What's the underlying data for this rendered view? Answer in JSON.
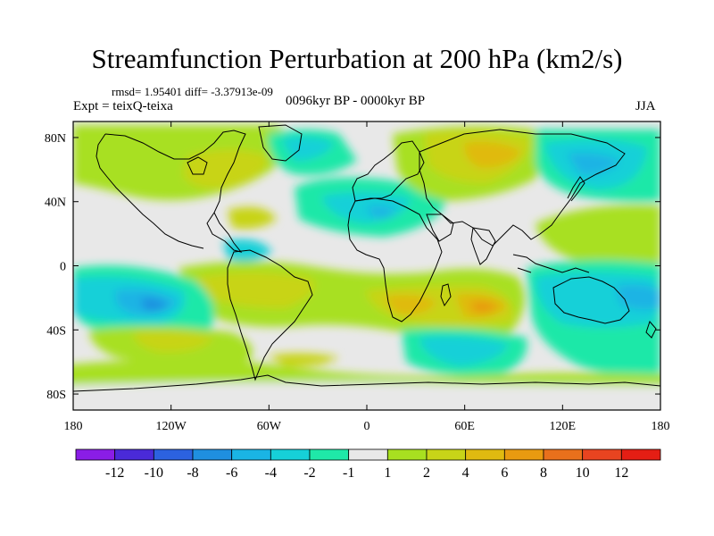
{
  "chart_data": {
    "type": "contour-map",
    "title": "Streamfunction Perturbation at 200 hPa (km2/s)",
    "subtitle_left_small": "rmsd= 1.95401 diff= -3.37913e-09",
    "subtitle_left": "Expt = teixQ-teixa",
    "subtitle_center": "0096kyr BP - 0000kyr BP",
    "subtitle_right": "JJA",
    "x_ticks": [
      "180",
      "120W",
      "60W",
      "0",
      "60E",
      "120E",
      "180"
    ],
    "y_ticks": [
      "80N",
      "40N",
      "0",
      "40S",
      "80S"
    ],
    "lon_range": [
      -180,
      180
    ],
    "lat_range": [
      -90,
      90
    ],
    "colorbar": {
      "labels": [
        "-12",
        "-10",
        "-8",
        "-6",
        "-4",
        "-2",
        "-1",
        "1",
        "2",
        "4",
        "6",
        "8",
        "10",
        "12"
      ],
      "colors": [
        "#8a1de6",
        "#4a2ad8",
        "#2c62e0",
        "#1f8fe0",
        "#1ab4e4",
        "#16d0d8",
        "#1fe8a8",
        "#e8e8e8",
        "#a8e020",
        "#c8d418",
        "#e0ba10",
        "#e89a10",
        "#e8701c",
        "#e84420",
        "#e41e14"
      ]
    },
    "anomaly_centers": [
      {
        "lon": -20,
        "lat": -55,
        "level": "4"
      },
      {
        "lon": -155,
        "lat": -22,
        "level": "-4"
      },
      {
        "lon": 75,
        "lat": -25,
        "level": "6"
      },
      {
        "lon": 80,
        "lat": 72,
        "level": "4"
      },
      {
        "lon": 10,
        "lat": 30,
        "level": "-4"
      }
    ]
  }
}
